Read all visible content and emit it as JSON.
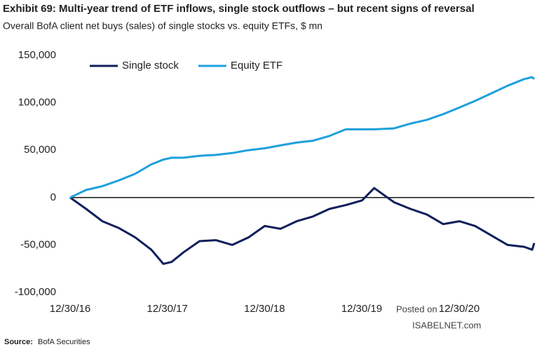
{
  "chart_data": {
    "type": "line",
    "title": "Exhibit 69: Multi-year trend of ETF inflows, single stock outflows  – but recent signs of reversal",
    "subtitle": "Overall BofA client net buys (sales) of single stocks vs. equity ETFs, $ mn",
    "source_label": "Source:",
    "source": "BofA Securities",
    "watermark": [
      "Posted on",
      "ISABELNET.com"
    ],
    "x": [
      "2016-12-30",
      "2017-02-28",
      "2017-04-30",
      "2017-06-30",
      "2017-08-31",
      "2017-10-31",
      "2017-12-15",
      "2018-01-15",
      "2018-02-28",
      "2018-04-30",
      "2018-06-30",
      "2018-08-31",
      "2018-10-31",
      "2018-12-31",
      "2019-02-28",
      "2019-04-30",
      "2019-06-30",
      "2019-08-31",
      "2019-10-31",
      "2019-12-31",
      "2020-02-15",
      "2020-04-30",
      "2020-06-30",
      "2020-08-31",
      "2020-10-31",
      "2020-12-31",
      "2021-02-28",
      "2021-04-30",
      "2021-06-30",
      "2021-08-31",
      "2021-09-30",
      "2021-10-08"
    ],
    "series": [
      {
        "name": "Single stock",
        "color": "#0f1f5c",
        "values": [
          0,
          -12000,
          -25000,
          -32000,
          -42000,
          -55000,
          -70000,
          -68000,
          -58000,
          -46000,
          -45000,
          -50000,
          -42000,
          -30000,
          -33000,
          -25000,
          -20000,
          -12000,
          -8000,
          -3000,
          10000,
          -5000,
          -12000,
          -18000,
          -28000,
          -25000,
          -30000,
          -40000,
          -50000,
          -52000,
          -55000,
          -48000
        ]
      },
      {
        "name": "Equity ETF",
        "color": "#1ea0dc",
        "values": [
          0,
          8000,
          12000,
          18000,
          25000,
          35000,
          40000,
          42000,
          42000,
          44000,
          45000,
          47000,
          50000,
          52000,
          55000,
          58000,
          60000,
          65000,
          72000,
          72000,
          72000,
          73000,
          78000,
          82000,
          88000,
          95000,
          102000,
          110000,
          118000,
          125000,
          127000,
          125000
        ]
      }
    ],
    "xlim": [
      "2016-12-30",
      "2021-10-08"
    ],
    "xticks": [
      {
        "value": "2016-12-30",
        "label": "12/30/16"
      },
      {
        "value": "2017-12-30",
        "label": "12/30/17"
      },
      {
        "value": "2018-12-30",
        "label": "12/30/18"
      },
      {
        "value": "2019-12-30",
        "label": "12/30/19"
      },
      {
        "value": "2020-12-30",
        "label": "12/30/20"
      }
    ],
    "ylim": [
      -100000,
      150000
    ],
    "yticks": [
      {
        "value": 150000,
        "label": "150,000"
      },
      {
        "value": 100000,
        "label": "100,000"
      },
      {
        "value": 50000,
        "label": "50,000"
      },
      0,
      {
        "value": -50000,
        "label": "-50,000"
      },
      {
        "value": -100000,
        "label": "-100,000"
      }
    ],
    "zero_line": true,
    "grid": false,
    "legend": "top-left"
  }
}
